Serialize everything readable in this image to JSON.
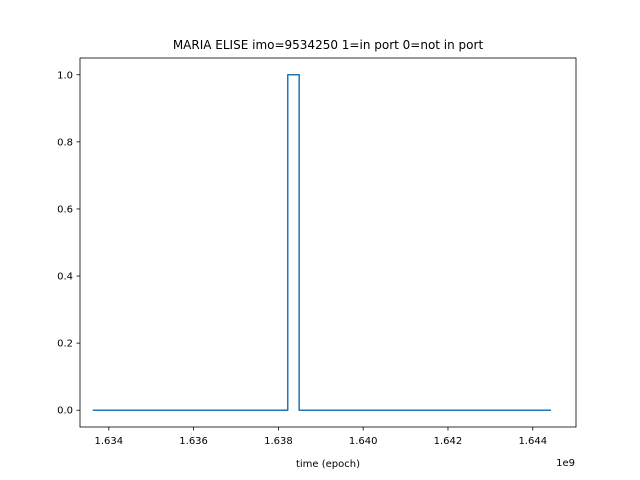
{
  "chart_data": {
    "type": "line",
    "title": "MARIA ELISE imo=9534250 1=in port 0=not in port",
    "xlabel": "time (epoch)",
    "ylabel": "",
    "x_offset_label": "1e9",
    "xlim": [
      1.63332,
      1.64502
    ],
    "ylim": [
      -0.05,
      1.05
    ],
    "x_ticks": [
      1.634,
      1.636,
      1.638,
      1.64,
      1.642,
      1.644
    ],
    "x_tick_labels": [
      "1.634",
      "1.636",
      "1.638",
      "1.640",
      "1.642",
      "1.644"
    ],
    "y_ticks": [
      0.0,
      0.2,
      0.4,
      0.6,
      0.8,
      1.0
    ],
    "y_tick_labels": [
      "0.0",
      "0.2",
      "0.4",
      "0.6",
      "0.8",
      "1.0"
    ],
    "grid": false,
    "series": [
      {
        "color": "#1f77b4",
        "x": [
          1.63362,
          1.63822,
          1.63822,
          1.63849,
          1.63849,
          1.64443
        ],
        "y": [
          0,
          0,
          1,
          1,
          0,
          0
        ]
      }
    ]
  }
}
